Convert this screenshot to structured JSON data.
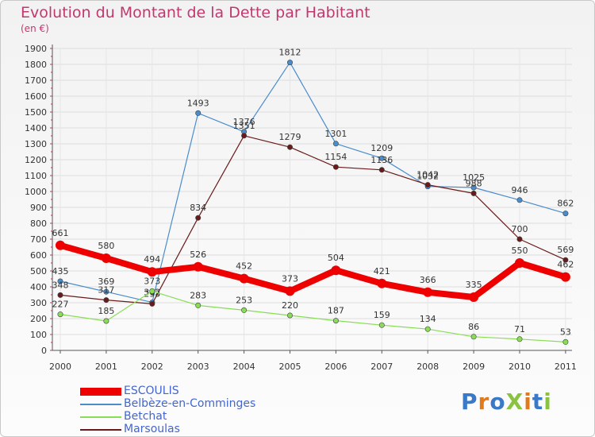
{
  "title": "Evolution du Montant de la Dette par Habitant",
  "subtitle": "(en €)",
  "logo": "ProXiti",
  "chart_data": {
    "type": "line",
    "title": "Evolution du Montant de la Dette par Habitant",
    "subtitle": "(en €)",
    "xlabel": "",
    "ylabel": "",
    "categories": [
      "2000",
      "2001",
      "2002",
      "2003",
      "2004",
      "2005",
      "2006",
      "2007",
      "2008",
      "2009",
      "2010",
      "2011"
    ],
    "ylim": [
      0,
      1900
    ],
    "yticks": [
      0,
      100,
      200,
      300,
      400,
      500,
      600,
      700,
      800,
      900,
      1000,
      1100,
      1200,
      1300,
      1400,
      1500,
      1600,
      1700,
      1800,
      1900
    ],
    "grid": true,
    "legend_position": "bottom-left",
    "series": [
      {
        "name": "ESCOULIS",
        "color": "#ee0000",
        "values": [
          661,
          580,
          494,
          526,
          452,
          373,
          504,
          421,
          366,
          335,
          550,
          462
        ]
      },
      {
        "name": "Belbèze-en-Comminges",
        "color": "#4a8ccc",
        "values": [
          435,
          369,
          302,
          1493,
          1376,
          1812,
          1301,
          1209,
          1032,
          1025,
          946,
          862
        ]
      },
      {
        "name": "Betchat",
        "color": "#88dd55",
        "values": [
          227,
          185,
          373,
          283,
          253,
          220,
          187,
          159,
          134,
          86,
          71,
          53
        ]
      },
      {
        "name": "Marsoulas",
        "color": "#6a1a1a",
        "values": [
          348,
          317,
          293,
          834,
          1351,
          1279,
          1154,
          1136,
          1042,
          988,
          700,
          569
        ]
      }
    ]
  }
}
